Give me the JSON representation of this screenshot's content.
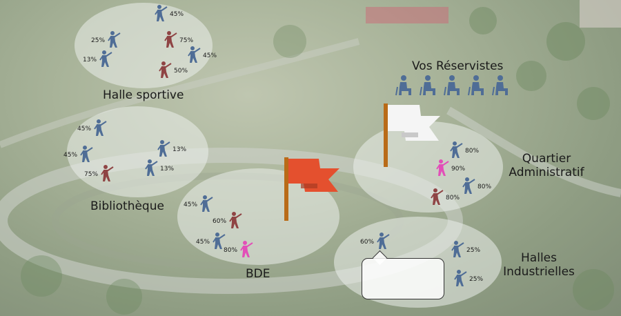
{
  "colors": {
    "blue": "#4f6d96",
    "red": "#8f4444",
    "pink": "#e24fb8",
    "flag_red": "#e4502e",
    "flag_white": "#f5f5f5",
    "pole": "#b96b18"
  },
  "reserves": {
    "title": "Vos Réservistes",
    "count": 5,
    "icon": "reservist-sitting-icon"
  },
  "zones": [
    {
      "id": "halle-sportive",
      "label": "Halle sportive",
      "units": [
        {
          "pct": "45%",
          "team": "blue"
        },
        {
          "pct": "25%",
          "team": "blue"
        },
        {
          "pct": "75%",
          "team": "red"
        },
        {
          "pct": "13%",
          "team": "blue"
        },
        {
          "pct": "45%",
          "team": "blue"
        },
        {
          "pct": "50%",
          "team": "red"
        }
      ]
    },
    {
      "id": "bibliotheque",
      "label": "Bibliothèque",
      "units": [
        {
          "pct": "45%",
          "team": "blue"
        },
        {
          "pct": "13%",
          "team": "blue"
        },
        {
          "pct": "45%",
          "team": "blue"
        },
        {
          "pct": "75%",
          "team": "red"
        },
        {
          "pct": "13%",
          "team": "blue"
        }
      ]
    },
    {
      "id": "bde",
      "label": "BDE",
      "flag": "red-flag-icon",
      "units": [
        {
          "pct": "45%",
          "team": "blue"
        },
        {
          "pct": "60%",
          "team": "red"
        },
        {
          "pct": "45%",
          "team": "blue"
        },
        {
          "pct": "80%",
          "team": "pink"
        }
      ]
    },
    {
      "id": "quartier-administratif",
      "label_lines": [
        "Quartier",
        "Administratif"
      ],
      "flag": "white-flag-icon",
      "units": [
        {
          "pct": "80%",
          "team": "blue"
        },
        {
          "pct": "90%",
          "team": "pink"
        },
        {
          "pct": "80%",
          "team": "blue"
        },
        {
          "pct": "80%",
          "team": "red"
        }
      ]
    },
    {
      "id": "halles-industrielles",
      "label_lines": [
        "Halles",
        "Industrielles"
      ],
      "units": [
        {
          "pct": "60%",
          "team": "blue"
        },
        {
          "pct": "25%",
          "team": "blue"
        },
        {
          "pct": "25%",
          "team": "blue"
        }
      ]
    }
  ],
  "tooltip": {
    "text": ""
  }
}
